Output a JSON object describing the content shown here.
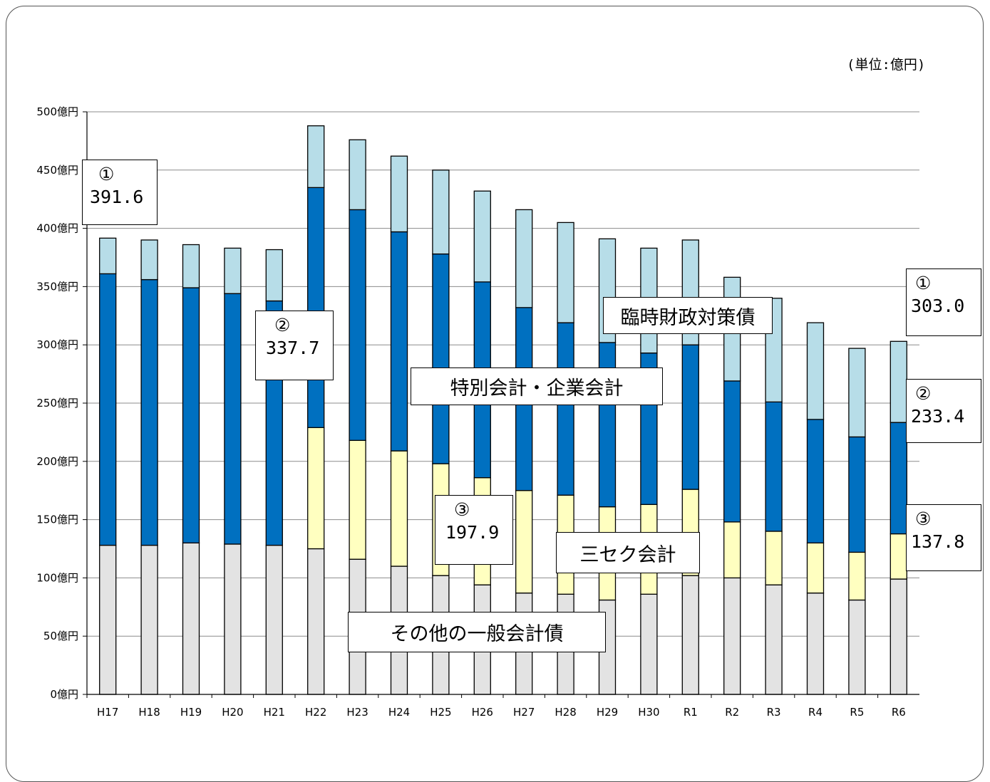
{
  "unit_label": "(単位:億円)",
  "chart_data": {
    "type": "bar",
    "stacked": true,
    "categories": [
      "H17",
      "H18",
      "H19",
      "H20",
      "H21",
      "H22",
      "H23",
      "H24",
      "H25",
      "H26",
      "H27",
      "H28",
      "H29",
      "H30",
      "R1",
      "R2",
      "R3",
      "R4",
      "R5",
      "R6"
    ],
    "yticks": [
      "0億円",
      "50億円",
      "100億円",
      "150億円",
      "200億円",
      "250億円",
      "300億円",
      "350億円",
      "400億円",
      "450億円",
      "500億円"
    ],
    "ylim": [
      0,
      500
    ],
    "grid": true,
    "series": [
      {
        "name": "その他の一般会計債",
        "color": "#e3e3e3",
        "values": [
          128,
          128,
          130,
          129,
          128,
          125,
          116,
          110,
          102,
          94,
          87,
          86,
          81,
          86,
          102,
          100,
          94,
          87,
          81,
          99
        ]
      },
      {
        "name": "三セク会計",
        "color": "#ffffc0",
        "values": [
          0,
          0,
          0,
          0,
          0,
          104,
          102,
          99,
          96,
          92,
          88,
          85,
          80,
          77,
          74,
          48,
          46,
          43,
          41,
          38.8
        ]
      },
      {
        "name": "特別会計・企業会計",
        "color": "#0070c0",
        "values": [
          233,
          228,
          219,
          215,
          209.7,
          206,
          198,
          188,
          180,
          168,
          157,
          148,
          141,
          130,
          124,
          121,
          111,
          106,
          99,
          95.6
        ]
      },
      {
        "name": "臨時財政対策債",
        "color": "#b7dde8",
        "values": [
          30.6,
          34,
          37,
          39,
          44,
          53,
          60,
          65,
          72,
          78,
          84,
          86,
          89,
          90,
          90,
          89,
          89,
          83,
          76,
          69.6
        ]
      }
    ],
    "annotations": {
      "start_total": {
        "circle": "①",
        "value": "391.6"
      },
      "start_special": {
        "circle": "②",
        "value": "337.7"
      },
      "start_sanseku": {
        "circle": "③",
        "value": "197.9"
      },
      "end_total": {
        "circle": "①",
        "value": "303.0"
      },
      "end_special": {
        "circle": "②",
        "value": "233.4"
      },
      "end_sanseku": {
        "circle": "③",
        "value": "137.8"
      }
    },
    "series_labels": {
      "rinji": "臨時財政対策債",
      "tokubetsu": "特別会計・企業会計",
      "sanseku": "三セク会計",
      "sonota": "その他の一般会計債"
    }
  }
}
